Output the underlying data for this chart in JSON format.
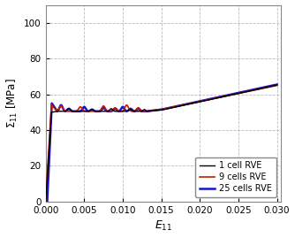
{
  "title": "",
  "xlabel": "$E_{11}$",
  "ylabel": "$\\Sigma_{11}$ [MPa]",
  "xlim": [
    0.0,
    0.0305
  ],
  "ylim": [
    0,
    110
  ],
  "yticks": [
    0,
    20,
    40,
    60,
    80,
    100
  ],
  "xticks": [
    0.0,
    0.005,
    0.01,
    0.015,
    0.02,
    0.025,
    0.03
  ],
  "line_colors": {
    "1cell": "#000000",
    "9cells": "#c41a00",
    "25cells": "#1515cc"
  },
  "line_labels": [
    "1 cell RVE",
    "9 cells RVE",
    "25 cells RVE"
  ],
  "line_widths": {
    "1cell": 1.0,
    "9cells": 1.2,
    "25cells": 1.8
  },
  "legend_loc": "lower right",
  "background_color": "#ffffff",
  "grid_color": "#bbbbbb",
  "grid_linestyle": "--"
}
